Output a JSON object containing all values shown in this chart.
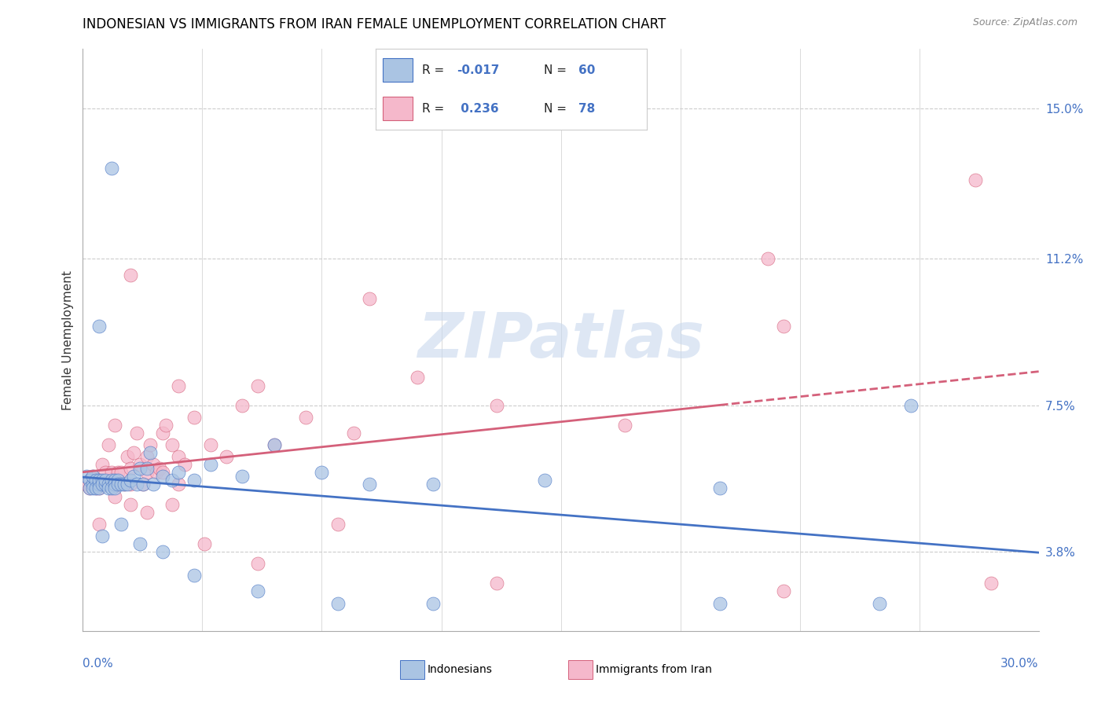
{
  "title": "INDONESIAN VS IMMIGRANTS FROM IRAN FEMALE UNEMPLOYMENT CORRELATION CHART",
  "source": "Source: ZipAtlas.com",
  "ylabel": "Female Unemployment",
  "watermark": "ZIPatlas",
  "xmin": 0.0,
  "xmax": 30.0,
  "ymin": 1.8,
  "ymax": 16.5,
  "y_ticks": [
    3.8,
    7.5,
    11.2,
    15.0
  ],
  "y_tick_labels": [
    "3.8%",
    "7.5%",
    "11.2%",
    "15.0%"
  ],
  "color_blue": "#aac4e3",
  "color_pink": "#f5b8cb",
  "color_blue_line": "#4472c4",
  "color_pink_line": "#d4607a",
  "color_text_blue": "#4472c4",
  "indo_x": [
    0.1,
    0.2,
    0.2,
    0.3,
    0.3,
    0.3,
    0.4,
    0.4,
    0.5,
    0.5,
    0.5,
    0.6,
    0.6,
    0.7,
    0.7,
    0.8,
    0.8,
    0.9,
    0.9,
    1.0,
    1.0,
    1.0,
    1.1,
    1.1,
    1.2,
    1.3,
    1.4,
    1.5,
    1.6,
    1.7,
    1.8,
    1.9,
    2.0,
    2.1,
    2.2,
    2.5,
    2.8,
    3.0,
    3.5,
    4.0,
    5.0,
    6.0,
    7.5,
    9.0,
    11.0,
    14.5,
    20.0,
    26.0,
    0.6,
    1.2,
    1.8,
    2.5,
    3.5,
    5.5,
    8.0,
    11.0,
    20.0,
    25.0,
    0.5,
    0.9
  ],
  "indo_y": [
    5.7,
    5.6,
    5.4,
    5.5,
    5.7,
    5.4,
    5.6,
    5.4,
    5.5,
    5.6,
    5.4,
    5.6,
    5.5,
    5.5,
    5.6,
    5.5,
    5.4,
    5.6,
    5.4,
    5.6,
    5.5,
    5.4,
    5.6,
    5.5,
    5.5,
    5.5,
    5.5,
    5.6,
    5.7,
    5.5,
    5.9,
    5.5,
    5.9,
    6.3,
    5.5,
    5.7,
    5.6,
    5.8,
    5.6,
    6.0,
    5.7,
    6.5,
    5.8,
    5.5,
    5.5,
    5.6,
    5.4,
    7.5,
    4.2,
    4.5,
    4.0,
    3.8,
    3.2,
    2.8,
    2.5,
    2.5,
    2.5,
    2.5,
    9.5,
    13.5
  ],
  "iran_x": [
    0.1,
    0.2,
    0.2,
    0.3,
    0.3,
    0.4,
    0.4,
    0.5,
    0.5,
    0.5,
    0.6,
    0.6,
    0.7,
    0.7,
    0.8,
    0.8,
    0.9,
    0.9,
    1.0,
    1.0,
    1.1,
    1.1,
    1.2,
    1.3,
    1.4,
    1.5,
    1.5,
    1.6,
    1.7,
    1.8,
    1.9,
    2.0,
    2.0,
    2.1,
    2.2,
    2.3,
    2.4,
    2.5,
    2.5,
    2.6,
    2.8,
    3.0,
    3.0,
    3.2,
    3.5,
    4.0,
    4.5,
    5.0,
    5.5,
    6.0,
    7.0,
    8.5,
    10.5,
    13.0,
    17.0,
    22.0,
    28.0,
    0.5,
    1.0,
    1.5,
    2.0,
    2.8,
    3.8,
    5.5,
    8.0,
    13.0,
    22.0,
    28.5,
    1.5,
    3.0,
    9.0,
    21.5
  ],
  "iran_y": [
    5.5,
    5.6,
    5.4,
    5.7,
    5.5,
    5.6,
    5.4,
    5.6,
    5.5,
    5.4,
    6.0,
    5.5,
    5.8,
    5.5,
    6.5,
    5.5,
    5.8,
    5.5,
    7.0,
    5.5,
    5.5,
    5.8,
    5.8,
    5.5,
    6.2,
    5.5,
    5.9,
    6.3,
    6.8,
    6.0,
    5.5,
    6.2,
    5.8,
    6.5,
    6.0,
    5.8,
    5.9,
    6.8,
    5.8,
    7.0,
    6.5,
    5.5,
    6.2,
    6.0,
    7.2,
    6.5,
    6.2,
    7.5,
    8.0,
    6.5,
    7.2,
    6.8,
    8.2,
    7.5,
    7.0,
    9.5,
    13.2,
    4.5,
    5.2,
    5.0,
    4.8,
    5.0,
    4.0,
    3.5,
    4.5,
    3.0,
    2.8,
    3.0,
    10.8,
    8.0,
    10.2,
    11.2
  ]
}
